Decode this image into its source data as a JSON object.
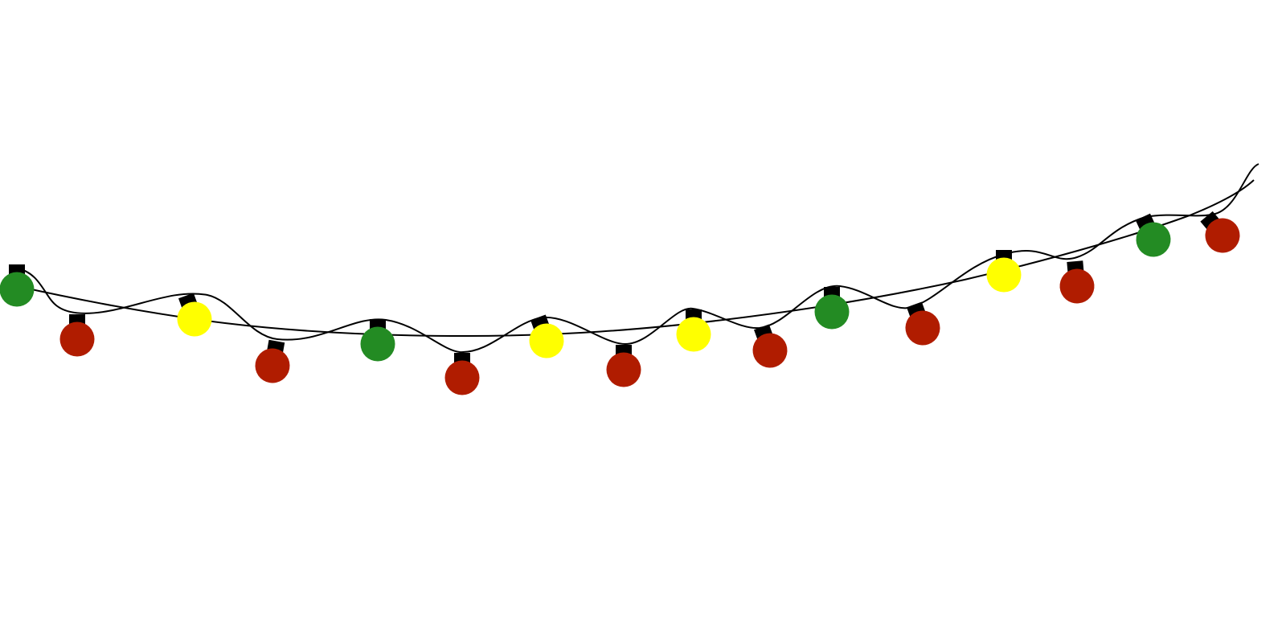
{
  "palette": {
    "green": "#238b23",
    "red": "#b01c00",
    "yellow": "#ffff00",
    "wire": "#000000",
    "background": "#ffffff"
  },
  "bulbs": [
    "green",
    "red",
    "yellow",
    "red",
    "green",
    "red",
    "yellow",
    "red",
    "yellow",
    "red",
    "green",
    "red",
    "yellow",
    "red",
    "green",
    "red"
  ]
}
